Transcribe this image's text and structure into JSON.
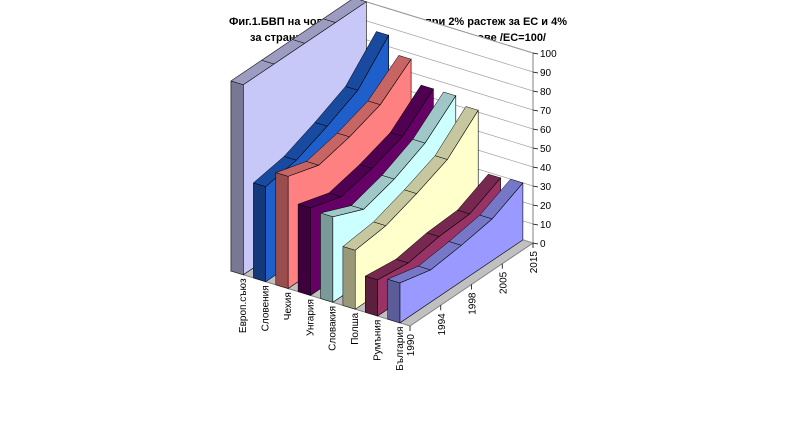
{
  "title_line1": "Фиг.1.БВП на човек от населението при 2% растеж за ЕС и 4%",
  "title_line2": "за страните кандидати по паритетни курсове /ЕС=100/",
  "chart_data": {
    "type": "area",
    "subtype": "3d-area",
    "title": "Фиг.1.БВП на човек от населението при 2% растеж за ЕС и 4% за страните кандидати по паритетни курсове /ЕС=100/",
    "x": [
      "1990",
      "1994",
      "1998",
      "2005",
      "2015"
    ],
    "ylim": [
      0,
      100
    ],
    "yticks": [
      0,
      10,
      20,
      30,
      40,
      50,
      60,
      70,
      80,
      90,
      100
    ],
    "grid": true,
    "series": [
      {
        "name": "Европ.съюз",
        "color": "#c8c8f8",
        "values": [
          100,
          100,
          100,
          100,
          100
        ]
      },
      {
        "name": "Словения",
        "color": "#1f5fcc",
        "values": [
          50,
          53,
          60,
          68,
          86
        ]
      },
      {
        "name": "Чехия",
        "color": "#ff8080",
        "values": [
          59,
          54,
          58,
          64,
          77
        ]
      },
      {
        "name": "Унгария",
        "color": "#660066",
        "values": [
          46,
          41,
          45,
          51,
          65
        ]
      },
      {
        "name": "Словакия",
        "color": "#ccffff",
        "values": [
          45,
          38,
          43,
          51,
          65
        ]
      },
      {
        "name": "Полша",
        "color": "#ffffcc",
        "values": [
          31,
          33,
          39,
          46,
          61
        ]
      },
      {
        "name": "Румъния",
        "color": "#993366",
        "values": [
          19,
          17,
          20,
          21,
          29
        ]
      },
      {
        "name": "България",
        "color": "#9999ff",
        "values": [
          21,
          17,
          19,
          22,
          30
        ]
      }
    ]
  }
}
